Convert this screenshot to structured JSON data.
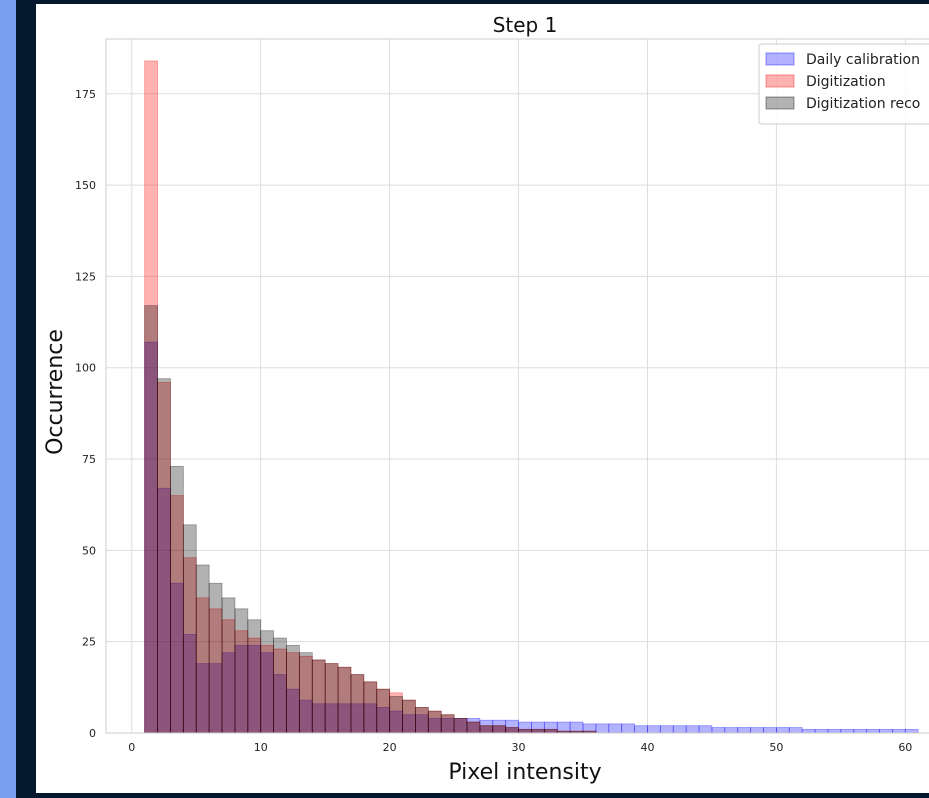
{
  "chart_data": {
    "type": "bar",
    "title": "Step 1",
    "xlabel": "Pixel intensity",
    "ylabel": "Occurrence",
    "xlim": [
      -2,
      63
    ],
    "ylim": [
      0,
      190
    ],
    "xticks": [
      0,
      10,
      20,
      30,
      40,
      50,
      60
    ],
    "yticks": [
      0,
      25,
      50,
      75,
      100,
      125,
      150,
      175
    ],
    "grid": true,
    "legend_position": "top-right",
    "bin_start": 1,
    "bin_width": 1,
    "series": [
      {
        "name": "Daily calibration",
        "color": "#0000ff",
        "values": [
          107,
          67,
          41,
          27,
          19,
          19,
          22,
          24,
          24,
          22,
          16,
          12,
          9,
          8,
          8,
          8,
          8,
          8,
          7,
          6,
          5,
          5,
          4,
          4,
          4,
          4,
          3.5,
          3.5,
          3.5,
          3,
          3,
          3,
          3,
          3,
          2.5,
          2.5,
          2.5,
          2.5,
          2,
          2,
          2,
          2,
          2,
          2,
          1.5,
          1.5,
          1.5,
          1.5,
          1.5,
          1.5,
          1.5,
          1,
          1,
          1,
          1,
          1,
          1,
          1,
          1,
          1
        ]
      },
      {
        "name": "Digitization",
        "color": "#ff0000",
        "values": [
          184,
          96,
          65,
          48,
          37,
          34,
          31,
          28,
          26,
          24,
          23,
          22,
          21,
          20,
          19,
          18,
          16,
          14,
          12,
          11,
          9,
          7,
          6,
          5,
          4,
          3,
          2,
          2,
          1.5,
          1,
          1,
          1,
          0.5,
          0.5,
          0.5,
          0,
          0,
          0,
          0,
          0,
          0,
          0,
          0,
          0,
          0,
          0,
          0,
          0,
          0,
          0,
          0,
          0,
          0,
          0,
          0,
          0,
          0,
          0,
          0,
          0
        ]
      },
      {
        "name": "Digitization reco",
        "color": "#000000",
        "values": [
          117,
          97,
          73,
          57,
          46,
          41,
          37,
          34,
          31,
          28,
          26,
          24,
          22,
          20,
          19,
          18,
          16,
          14,
          12,
          10,
          9,
          7,
          6,
          5,
          4,
          3,
          2,
          2,
          1.5,
          1,
          1,
          1,
          0.5,
          0.5,
          0.5,
          0,
          0,
          0,
          0,
          0,
          0,
          0,
          0,
          0,
          0,
          0,
          0,
          0,
          0,
          0,
          0,
          0,
          0,
          0,
          0,
          0,
          0,
          0,
          0,
          0
        ]
      }
    ]
  }
}
